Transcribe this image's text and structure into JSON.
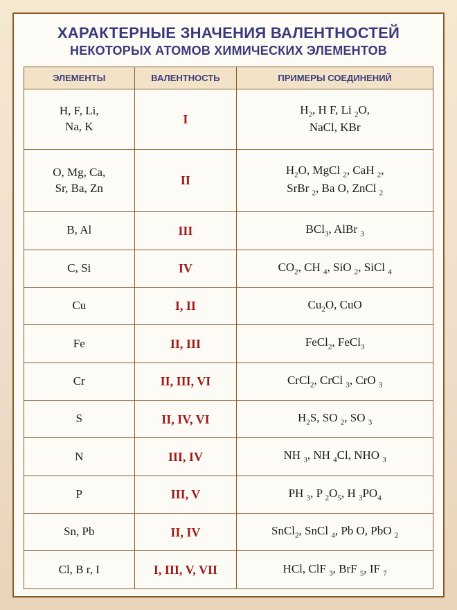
{
  "title": {
    "line1": "ХАРАКТЕРНЫЕ ЗНАЧЕНИЯ ВАЛЕНТНОСТЕЙ",
    "line2": "НЕКОТОРЫХ АТОМОВ ХИМИЧЕСКИХ ЭЛЕМЕНТОВ"
  },
  "headers": {
    "elements": "ЭЛЕМЕНТЫ",
    "valence": "ВАЛЕНТНОСТЬ",
    "examples": "ПРИМЕРЫ СОЕДИНЕНИЙ"
  },
  "rows": [
    {
      "elements": "H,  F,  Li,<br>Na, K",
      "valence": "I",
      "examples": "H<sub class='sub'>2</sub>, H F, Li <sub class='sub'>2</sub>O,<br>NaCl, KBr"
    },
    {
      "elements": "O, Mg, Ca,<br>Sr, Ba, Zn",
      "valence": "II",
      "examples": "H<sub class='sub'>2</sub>O, MgCl <sub class='sub'>2</sub>, CaH <sub class='sub'>2</sub>,<br>SrBr <sub class='sub'>2</sub>, Ba O, ZnCl <sub class='sub'>2</sub>"
    },
    {
      "elements": "B, Al",
      "valence": "III",
      "examples": "BCl<sub class='sub'>3</sub>, AlBr <sub class='sub'>3</sub>"
    },
    {
      "elements": "C, Si",
      "valence": "IV",
      "examples": "CO<sub class='sub'>2</sub>, CH <sub class='sub'>4</sub>, SiO <sub class='sub'>2</sub>, SiCl <sub class='sub'>4</sub>"
    },
    {
      "elements": "Cu",
      "valence": "I, II",
      "examples": "Cu<sub class='sub'>2</sub>O, CuO"
    },
    {
      "elements": "Fe",
      "valence": "II, III",
      "examples": "FeCl<sub class='sub'>2</sub>, FeCl<sub class='sub'>3</sub>"
    },
    {
      "elements": "Cr",
      "valence": "II, III, VI",
      "examples": "CrCl<sub class='sub'>2</sub>, CrCl <sub class='sub'>3</sub>, CrO <sub class='sub'>3</sub>"
    },
    {
      "elements": "S",
      "valence": "II, IV, VI",
      "examples": "H<sub class='sub'>2</sub>S, SO <sub class='sub'>2</sub>, SO <sub class='sub'>3</sub>"
    },
    {
      "elements": "N",
      "valence": "III, IV",
      "examples": "NH <sub class='sub'>3</sub>, NH <sub class='sub'>4</sub>Cl, NHO <sub class='sub'>3</sub>"
    },
    {
      "elements": "P",
      "valence": "III, V",
      "examples": "PH <sub class='sub'>3</sub>, P <sub class='sub'>2</sub>O<sub class='sub'>5</sub>, H <sub class='sub'>3</sub>PO<sub class='sub'>4</sub>"
    },
    {
      "elements": "Sn, Pb",
      "valence": "II, IV",
      "examples": "SnCl<sub class='sub'>2</sub>, SnCl <sub class='sub'>4</sub>, Pb O, PbO <sub class='sub'>2</sub>"
    },
    {
      "elements": "Cl, B r, I",
      "valence": "I, III, V, VII",
      "examples": "HCl, ClF <sub class='sub'>3</sub>, BrF <sub class='sub'>5</sub>, IF <sub class='sub'>7</sub>"
    }
  ],
  "style": {
    "type": "table",
    "background_gradient": [
      "#f5e8d0",
      "#f0decd",
      "#e8d4b8"
    ],
    "frame_border": "#8b5a2b",
    "header_bg": "#f2e3c8",
    "header_text": "#3a3a7a",
    "title_color": "#3a3a7a",
    "cell_bg": "#fdfbf6",
    "cell_text": "#1a1a1a",
    "valence_color": "#a01818",
    "column_widths_pct": [
      27,
      25,
      48
    ],
    "title_fontsize_line1": 22,
    "title_fontsize_line2": 18,
    "header_fontsize": 13,
    "cell_fontsize": 17,
    "valence_fontsize": 18
  }
}
